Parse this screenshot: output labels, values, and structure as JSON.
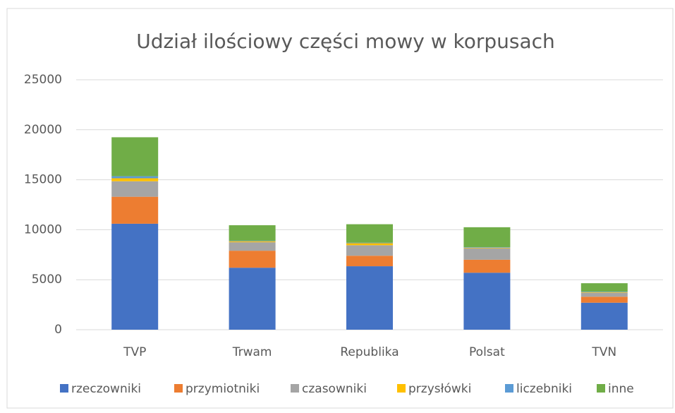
{
  "chart_data": {
    "type": "stacked_bar",
    "title": "Udział ilościowy części mowy w korpusach",
    "categories": [
      "TVP",
      "Trwam",
      "Republika",
      "Polsat",
      "TVN"
    ],
    "series": [
      {
        "name": "rzeczowniki",
        "color": "#4472c4",
        "values": [
          10600,
          6200,
          6350,
          5700,
          2700
        ]
      },
      {
        "name": "przymiotniki",
        "color": "#ed7d31",
        "values": [
          2700,
          1700,
          1050,
          1300,
          600
        ]
      },
      {
        "name": "czasowniki",
        "color": "#a5a5a5",
        "values": [
          1550,
          850,
          1050,
          1150,
          400
        ]
      },
      {
        "name": "przysłówki",
        "color": "#ffc000",
        "values": [
          300,
          100,
          200,
          50,
          50
        ]
      },
      {
        "name": "liczebniki",
        "color": "#5b9bd5",
        "values": [
          200,
          50,
          50,
          50,
          50
        ]
      },
      {
        "name": "inne",
        "color": "#70ad47",
        "values": [
          3900,
          1550,
          1850,
          2000,
          850
        ]
      }
    ],
    "ylim": [
      0,
      25000
    ],
    "yticks": [
      0,
      5000,
      10000,
      15000,
      20000,
      25000
    ],
    "grid": true,
    "legend": "bottom"
  }
}
